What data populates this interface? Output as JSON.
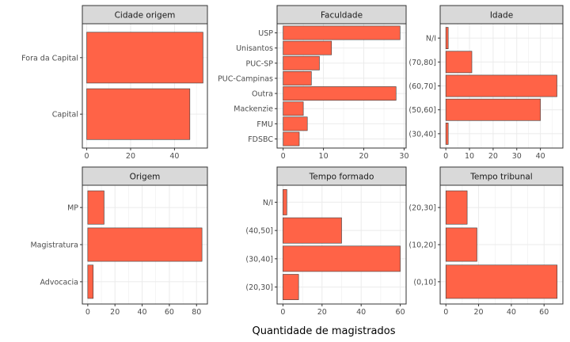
{
  "chart_data": {
    "type": "bar",
    "xlabel": "Quantidade de magistrados",
    "colors": {
      "bar_fill": "#FF6347",
      "bar_stroke": "#3a3a3a",
      "strip_fill": "#D9D9D9",
      "grid": "#EBEBEB"
    },
    "panels": [
      {
        "title": "Cidade origem",
        "categories": [
          "Fora da Capital",
          "Capital"
        ],
        "values": [
          53,
          47
        ],
        "xlim": [
          -2,
          55
        ],
        "xticks": [
          0,
          20,
          40
        ]
      },
      {
        "title": "Faculdade",
        "categories": [
          "USP",
          "Unisantos",
          "PUC-SP",
          "PUC-Campinas",
          "Outra",
          "Mackenzie",
          "FMU",
          "FDSBC"
        ],
        "values": [
          29,
          12,
          9,
          7,
          28,
          5,
          6,
          4
        ],
        "xlim": [
          -1.5,
          30.5
        ],
        "xticks": [
          0,
          10,
          20,
          30
        ]
      },
      {
        "title": "Idade",
        "categories": [
          "N/I",
          "(70,80]",
          "(60,70]",
          "(50,60]",
          "(30,40]"
        ],
        "values": [
          1,
          11,
          47,
          40,
          1
        ],
        "xlim": [
          -2.4,
          49.5
        ],
        "xticks": [
          0,
          10,
          20,
          30,
          40
        ]
      },
      {
        "title": "Origem",
        "categories": [
          "MP",
          "Magistratura",
          "Advocacia"
        ],
        "values": [
          12,
          84,
          4
        ],
        "xlim": [
          -4,
          88
        ],
        "xticks": [
          0,
          20,
          40,
          60,
          80
        ]
      },
      {
        "title": "Tempo formado",
        "categories": [
          "N/I",
          "(40,50]",
          "(30,40]",
          "(20,30]"
        ],
        "values": [
          2,
          30,
          60,
          8
        ],
        "xlim": [
          -3,
          63
        ],
        "xticks": [
          0,
          20,
          40,
          60
        ]
      },
      {
        "title": "Tempo tribunal",
        "categories": [
          "(20,30]",
          "(10,20]",
          "(0,10]"
        ],
        "values": [
          13,
          19,
          68
        ],
        "xlim": [
          -3.5,
          71.5
        ],
        "xticks": [
          0,
          20,
          40,
          60
        ]
      }
    ]
  }
}
